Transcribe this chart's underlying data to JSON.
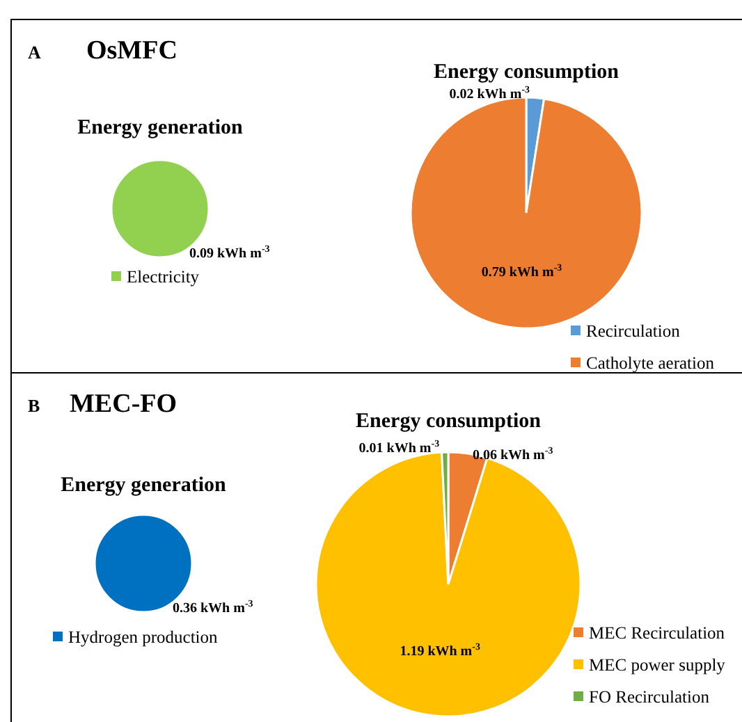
{
  "chart_data": [
    {
      "type": "pie",
      "title": "Energy generation",
      "annotations": [
        "A",
        "OsMFC"
      ],
      "categories": [
        "Electricity"
      ],
      "values": [
        0.09
      ],
      "colors": [
        "#92d050"
      ],
      "value_labels": [
        "0.09 kWh m$^{-3}$"
      ],
      "legend": "bottom"
    },
    {
      "type": "pie",
      "title": "Energy consumption",
      "categories": [
        "Recirculation",
        "Catholyte aeration"
      ],
      "values": [
        0.02,
        0.79
      ],
      "colors": [
        "#5b9bd5",
        "#ed7d31"
      ],
      "value_labels": [
        "0.02 kWh m$^{-3}$",
        "0.79 kWh m$^{-3}$"
      ],
      "legend": "bottom right"
    },
    {
      "type": "pie",
      "title": "Energy generation",
      "annotations": [
        "B",
        "MEC-FO"
      ],
      "categories": [
        "Hydrogen production"
      ],
      "values": [
        0.36
      ],
      "colors": [
        "#0070c0"
      ],
      "value_labels": [
        "0.36 kWh m$^{-3}$"
      ],
      "legend": "bottom"
    },
    {
      "type": "pie",
      "title": "Energy consumption",
      "categories": [
        "MEC Recirculation",
        "MEC power supply",
        "FO Recirculation"
      ],
      "values": [
        0.06,
        1.19,
        0.01
      ],
      "colors": [
        "#ed7d31",
        "#ffc000",
        "#70ad47"
      ],
      "value_labels": [
        "0.06 kWh m$^{-3}$",
        "1.19 kWh m$^{-3}$",
        "0.01 kWh m$^{-3}$"
      ],
      "legend": "bottom right"
    }
  ]
}
